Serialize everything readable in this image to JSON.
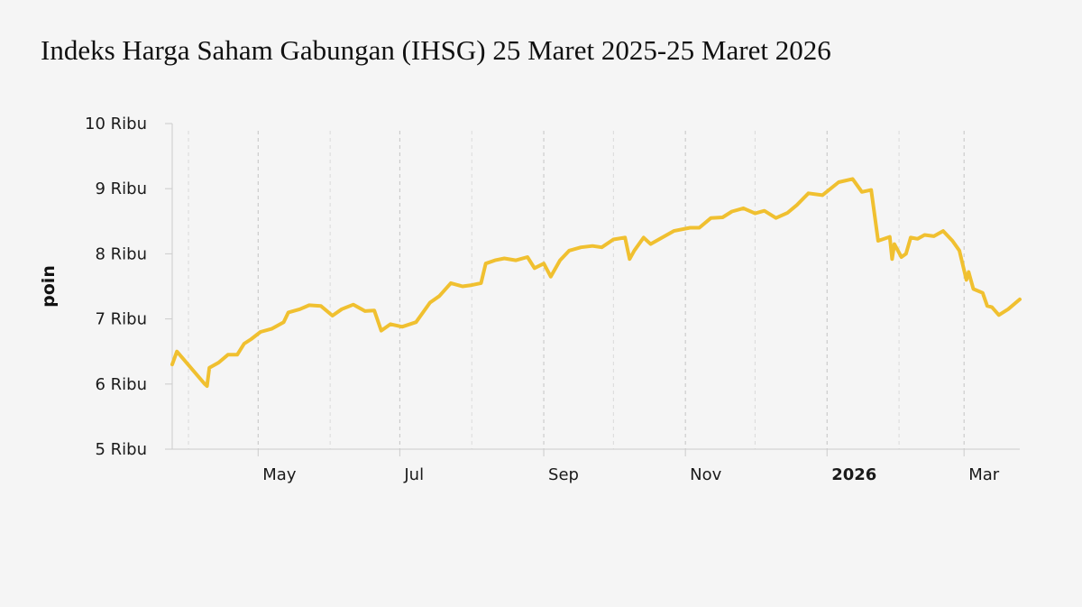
{
  "title": "Indeks Harga Saham Gabungan (IHSG) 25 Maret 2025-25 Maret 2026",
  "chart_data": {
    "type": "line",
    "title": "Indeks Harga Saham Gabungan (IHSG) 25 Maret 2025-25 Maret 2026",
    "xlabel": "",
    "ylabel": "poin",
    "x_range": [
      "2025-03-25",
      "2026-03-25"
    ],
    "ylim": [
      5000,
      10000
    ],
    "yticks": [
      {
        "value": 5000,
        "label": "5 Ribu"
      },
      {
        "value": 6000,
        "label": "6 Ribu"
      },
      {
        "value": 7000,
        "label": "7 Ribu"
      },
      {
        "value": 8000,
        "label": "8 Ribu"
      },
      {
        "value": 9000,
        "label": "9 Ribu"
      },
      {
        "value": 10000,
        "label": "10 Ribu"
      }
    ],
    "xticks": [
      {
        "date": "2025-05-01",
        "label": "May",
        "bold": false
      },
      {
        "date": "2025-07-01",
        "label": "Jul",
        "bold": false
      },
      {
        "date": "2025-09-01",
        "label": "Sep",
        "bold": false
      },
      {
        "date": "2025-11-01",
        "label": "Nov",
        "bold": false
      },
      {
        "date": "2026-01-01",
        "label": "2026",
        "bold": true
      },
      {
        "date": "2026-03-01",
        "label": "Mar",
        "bold": false
      }
    ],
    "minor_gridlines": [
      "2025-04-01",
      "2025-06-01",
      "2025-08-01",
      "2025-10-01",
      "2025-12-01",
      "2026-02-01"
    ],
    "colors": {
      "line": "#f0c030",
      "grid": "#c8c8c8",
      "axis": "#cccccc",
      "text": "#1a1a1a"
    },
    "series": [
      {
        "name": "",
        "x": [
          "2025-03-25",
          "2025-03-27",
          "2025-04-08",
          "2025-04-09",
          "2025-04-10",
          "2025-04-14",
          "2025-04-18",
          "2025-04-22",
          "2025-04-25",
          "2025-04-28",
          "2025-05-02",
          "2025-05-07",
          "2025-05-12",
          "2025-05-14",
          "2025-05-19",
          "2025-05-23",
          "2025-05-28",
          "2025-06-02",
          "2025-06-06",
          "2025-06-11",
          "2025-06-16",
          "2025-06-20",
          "2025-06-23",
          "2025-06-27",
          "2025-07-02",
          "2025-07-08",
          "2025-07-14",
          "2025-07-18",
          "2025-07-23",
          "2025-07-28",
          "2025-08-01",
          "2025-08-05",
          "2025-08-07",
          "2025-08-11",
          "2025-08-15",
          "2025-08-20",
          "2025-08-25",
          "2025-08-28",
          "2025-09-01",
          "2025-09-04",
          "2025-09-08",
          "2025-09-12",
          "2025-09-17",
          "2025-09-22",
          "2025-09-26",
          "2025-10-01",
          "2025-10-06",
          "2025-10-08",
          "2025-10-10",
          "2025-10-14",
          "2025-10-17",
          "2025-10-22",
          "2025-10-27",
          "2025-11-03",
          "2025-11-07",
          "2025-11-12",
          "2025-11-17",
          "2025-11-21",
          "2025-11-26",
          "2025-12-01",
          "2025-12-05",
          "2025-12-10",
          "2025-12-15",
          "2025-12-19",
          "2025-12-24",
          "2025-12-30",
          "2026-01-06",
          "2026-01-12",
          "2026-01-16",
          "2026-01-20",
          "2026-01-23",
          "2026-01-28",
          "2026-01-29",
          "2026-01-30",
          "2026-02-02",
          "2026-02-04",
          "2026-02-06",
          "2026-02-09",
          "2026-02-12",
          "2026-02-16",
          "2026-02-20",
          "2026-02-24",
          "2026-02-27",
          "2026-03-02",
          "2026-03-03",
          "2026-03-05",
          "2026-03-09",
          "2026-03-11",
          "2026-03-13",
          "2026-03-16",
          "2026-03-20",
          "2026-03-25"
        ],
        "values": [
          6300,
          6500,
          6000,
          5970,
          6250,
          6330,
          6450,
          6450,
          6620,
          6690,
          6800,
          6850,
          6950,
          7100,
          7150,
          7210,
          7200,
          7050,
          7150,
          7220,
          7120,
          7130,
          6820,
          6920,
          6880,
          6950,
          7250,
          7350,
          7550,
          7500,
          7520,
          7550,
          7850,
          7900,
          7930,
          7900,
          7950,
          7780,
          7850,
          7650,
          7900,
          8050,
          8100,
          8120,
          8100,
          8220,
          8250,
          7920,
          8050,
          8250,
          8150,
          8250,
          8350,
          8400,
          8400,
          8550,
          8560,
          8650,
          8700,
          8620,
          8660,
          8550,
          8630,
          8750,
          8930,
          8900,
          9100,
          9150,
          8950,
          8980,
          8200,
          8260,
          7920,
          8150,
          7950,
          8000,
          8250,
          8230,
          8290,
          8270,
          8350,
          8200,
          8050,
          7600,
          7720,
          7460,
          7400,
          7200,
          7180,
          7060,
          7150,
          7300
        ]
      }
    ]
  }
}
